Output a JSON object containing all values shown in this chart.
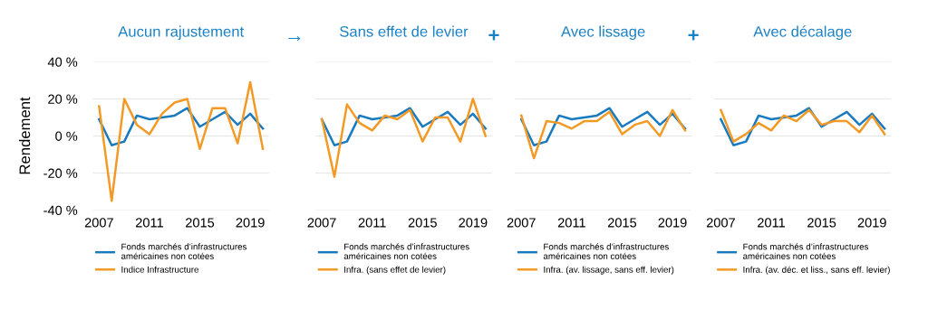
{
  "chart_data": [
    {
      "type": "line",
      "title": "Aucun rajustement",
      "ylabel": "Rendement",
      "x": [
        2007,
        2008,
        2009,
        2010,
        2011,
        2012,
        2013,
        2014,
        2015,
        2016,
        2017,
        2018,
        2019,
        2020
      ],
      "xlim": [
        2006.5,
        2020.5
      ],
      "xticks": [
        2007,
        2011,
        2015,
        2019
      ],
      "ylim": [
        -40,
        40
      ],
      "yticks": [
        {
          "value": -40,
          "label": "-40 %"
        },
        {
          "value": -20,
          "label": "-20 %"
        },
        {
          "value": 0,
          "label": "0 %"
        },
        {
          "value": 20,
          "label": "20 %"
        },
        {
          "value": 40,
          "label": "40 %"
        }
      ],
      "grid": "y",
      "legend": "bottom",
      "marker": "none",
      "line_style": "solid",
      "series": [
        {
          "name": "Fonds marchés d’infrastructures\naméricaines non cotées",
          "color": "#1a7abf",
          "values": [
            9,
            -5,
            -3,
            11,
            9,
            10,
            11,
            15,
            5,
            9,
            13,
            6,
            12,
            4
          ]
        },
        {
          "name": "Indice Infrastructure",
          "color": "#f39a26",
          "values": [
            16,
            -35,
            20,
            6,
            1,
            12,
            18,
            20,
            -7,
            15,
            15,
            -4,
            29,
            -7
          ]
        }
      ]
    },
    {
      "type": "line",
      "title": "Sans effet de levier",
      "annotations": [
        "→"
      ],
      "x": [
        2007,
        2008,
        2009,
        2010,
        2011,
        2012,
        2013,
        2014,
        2015,
        2016,
        2017,
        2018,
        2019,
        2020
      ],
      "xlim": [
        2006.5,
        2020.5
      ],
      "xticks": [
        2007,
        2011,
        2015,
        2019
      ],
      "ylim": [
        -40,
        40
      ],
      "yticks": [
        -40,
        -20,
        0,
        20,
        40
      ],
      "tick_labels": "x",
      "grid": "y",
      "legend": "bottom",
      "marker": "none",
      "line_style": "solid",
      "series": [
        {
          "name": "Fonds marchés d’infrastructures\naméricaines non cotées",
          "color": "#1a7abf",
          "values": [
            9,
            -5,
            -3,
            11,
            9,
            10,
            11,
            15,
            5,
            9,
            13,
            6,
            12,
            4
          ]
        },
        {
          "name": "Infra. (sans effet de levier)",
          "color": "#f39a26",
          "values": [
            9,
            -22,
            17,
            7,
            3,
            11,
            9,
            14,
            -3,
            10,
            10,
            -3,
            20,
            0
          ]
        }
      ]
    },
    {
      "type": "line",
      "title": "Avec lissage",
      "annotations": [
        "+"
      ],
      "x": [
        2007,
        2008,
        2009,
        2010,
        2011,
        2012,
        2013,
        2014,
        2015,
        2016,
        2017,
        2018,
        2019,
        2020
      ],
      "xlim": [
        2006.5,
        2020.5
      ],
      "xticks": [
        2007,
        2011,
        2015,
        2019
      ],
      "ylim": [
        -40,
        40
      ],
      "yticks": [
        -40,
        -20,
        0,
        20,
        40
      ],
      "tick_labels": "x",
      "grid": "y",
      "legend": "bottom",
      "marker": "none",
      "line_style": "solid",
      "series": [
        {
          "name": "Fonds marchés d’infrastructures\naméricaines non cotées",
          "color": "#1a7abf",
          "values": [
            9,
            -5,
            -3,
            11,
            9,
            10,
            11,
            15,
            5,
            9,
            13,
            6,
            12,
            4
          ]
        },
        {
          "name": "Infra. (av. lissage, sans eff. levier)",
          "color": "#f39a26",
          "values": [
            11,
            -12,
            8,
            7,
            4,
            8,
            8,
            13,
            1,
            6,
            8,
            0,
            14,
            3
          ]
        }
      ]
    },
    {
      "type": "line",
      "title": "Avec décalage",
      "annotations": [
        "+"
      ],
      "x": [
        2007,
        2008,
        2009,
        2010,
        2011,
        2012,
        2013,
        2014,
        2015,
        2016,
        2017,
        2018,
        2019,
        2020
      ],
      "xlim": [
        2006.5,
        2020.5
      ],
      "xticks": [
        2007,
        2011,
        2015,
        2019
      ],
      "ylim": [
        -40,
        40
      ],
      "yticks": [
        -40,
        -20,
        0,
        20,
        40
      ],
      "tick_labels": "x",
      "grid": "y",
      "legend": "bottom",
      "marker": "none",
      "line_style": "solid",
      "series": [
        {
          "name": "Fonds marchés d’infrastructures\naméricaines non cotées",
          "color": "#1a7abf",
          "values": [
            9,
            -5,
            -3,
            11,
            9,
            10,
            11,
            15,
            5,
            9,
            13,
            6,
            12,
            4
          ]
        },
        {
          "name": "Infra. (av. déc. et liss., sans eff. levier)",
          "color": "#f39a26",
          "values": [
            14,
            -3,
            1,
            7,
            3,
            11,
            8,
            14,
            6,
            8,
            8,
            2,
            11,
            1
          ]
        }
      ]
    }
  ]
}
